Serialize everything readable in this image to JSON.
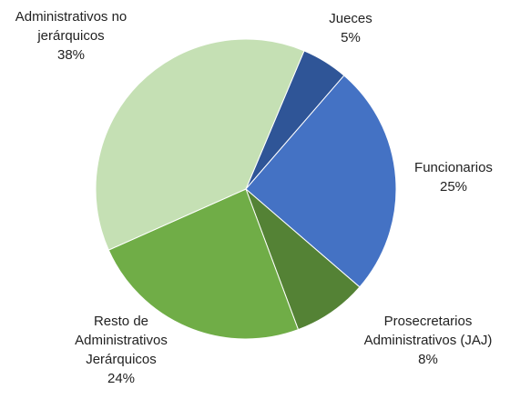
{
  "chart_data": {
    "type": "pie",
    "categories": [
      "Jueces",
      "Funcionarios",
      "Prosecretarios Administrativos (JAJ)",
      "Resto de Administrativos Jerárquicos",
      "Administrativos no jerárquicos"
    ],
    "values": [
      5,
      25,
      8,
      24,
      38
    ],
    "value_labels": [
      "5%",
      "25%",
      "8%",
      "24%",
      "38%"
    ],
    "colors": [
      "#2f5597",
      "#4472c4",
      "#548235",
      "#70ad47",
      "#c5e0b4"
    ]
  }
}
